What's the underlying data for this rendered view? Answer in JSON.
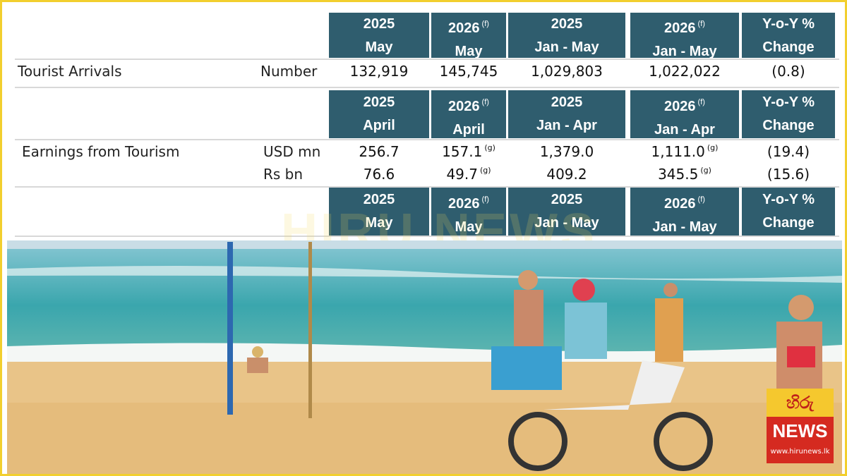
{
  "table": {
    "sections": [
      {
        "headers": [
          {
            "lines": [
              "2025",
              "May"
            ]
          },
          {
            "lines": [
              "2026",
              "May"
            ],
            "note": "(f)"
          },
          {
            "lines": [
              "2025",
              "Jan - May"
            ]
          },
          {
            "lines": [
              "2026",
              "Jan - May"
            ],
            "note": "(f)"
          },
          {
            "lines": [
              "Y-o-Y %",
              "Change"
            ]
          }
        ],
        "rows": [
          {
            "label": "Tourist Arrivals",
            "unit": "Number",
            "cells": [
              {
                "text": "132,919"
              },
              {
                "text": "145,745"
              },
              {
                "text": "1,029,803"
              },
              {
                "text": "1,022,022"
              },
              {
                "text": "(0.8)"
              }
            ]
          }
        ]
      },
      {
        "headers": [
          {
            "lines": [
              "2025",
              "April"
            ]
          },
          {
            "lines": [
              "2026",
              "April"
            ],
            "note": "(f)"
          },
          {
            "lines": [
              "2025",
              "Jan - Apr"
            ]
          },
          {
            "lines": [
              "2026",
              "Jan - Apr"
            ],
            "note": "(f)"
          },
          {
            "lines": [
              "Y-o-Y %",
              "Change"
            ]
          }
        ],
        "rows": [
          {
            "label": "Earnings from Tourism",
            "unit": "USD mn",
            "cells": [
              {
                "text": "256.7"
              },
              {
                "text": "157.1",
                "note": "(g)"
              },
              {
                "text": "1,379.0"
              },
              {
                "text": "1,111.0",
                "note": "(g)"
              },
              {
                "text": "(19.4)"
              }
            ]
          },
          {
            "unit": "Rs bn",
            "cells": [
              {
                "text": "76.6"
              },
              {
                "text": "49.7",
                "note": "(g)"
              },
              {
                "text": "409.2"
              },
              {
                "text": "345.5",
                "note": "(g)"
              },
              {
                "text": "(15.6)"
              }
            ]
          }
        ]
      },
      {
        "headers": [
          {
            "lines": [
              "2025",
              "May"
            ]
          },
          {
            "lines": [
              "2026",
              "May"
            ],
            "note": "(f)"
          },
          {
            "lines": [
              "2025",
              "Jan - May"
            ]
          },
          {
            "lines": [
              "2026",
              "Jan - May"
            ],
            "note": "(f)"
          },
          {
            "lines": [
              "Y-o-Y %",
              "Change"
            ]
          }
        ],
        "rows": []
      }
    ]
  },
  "watermark": "HIRU NEWS",
  "logo": {
    "brand": "හිරු",
    "name": "NEWS",
    "url": "www.hirunews.lk"
  }
}
